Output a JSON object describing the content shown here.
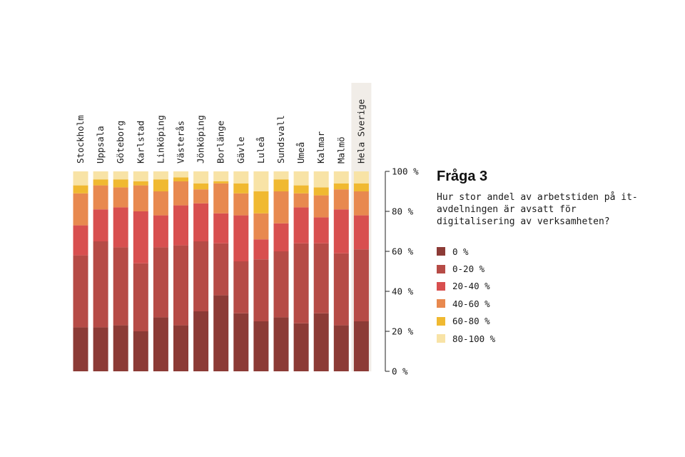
{
  "chart_data": {
    "type": "bar",
    "stacked": true,
    "title": "Fråga 3",
    "subtitle": "Hur stor andel av arbetstiden på it-avdelningen är avsatt för digitalisering av verksamheten?",
    "categories": [
      "Stockholm",
      "Uppsala",
      "Göteborg",
      "Karlstad",
      "Linköping",
      "Västerås",
      "Jönköping",
      "Borlänge",
      "Gävle",
      "Luleå",
      "Sundsvall",
      "Umeå",
      "Kalmar",
      "Malmö",
      "Hela Sverige"
    ],
    "highlight_category": "Hela Sverige",
    "y_ticks": [
      "0 %",
      "20 %",
      "40 %",
      "60 %",
      "80 %",
      "100 %"
    ],
    "ylim": [
      0,
      100
    ],
    "series": [
      {
        "name": "0 %",
        "color": "#8c3b36",
        "values": [
          22,
          22,
          23,
          20,
          27,
          23,
          30,
          38,
          29,
          25,
          27,
          24,
          29,
          23,
          25
        ]
      },
      {
        "name": "0-20 %",
        "color": "#b64b46",
        "values": [
          36,
          43,
          39,
          34,
          35,
          40,
          35,
          26,
          26,
          31,
          33,
          40,
          35,
          36,
          36
        ]
      },
      {
        "name": "20-40 %",
        "color": "#d84f4f",
        "values": [
          15,
          16,
          20,
          26,
          16,
          20,
          19,
          15,
          23,
          10,
          14,
          18,
          13,
          22,
          17
        ]
      },
      {
        "name": "40-60 %",
        "color": "#e8894f",
        "values": [
          16,
          12,
          10,
          13,
          12,
          12,
          7,
          15,
          11,
          13,
          16,
          7,
          11,
          10,
          12
        ]
      },
      {
        "name": "60-80 %",
        "color": "#f0b931",
        "values": [
          4,
          3,
          4,
          2,
          6,
          2,
          3,
          1,
          5,
          11,
          6,
          4,
          4,
          3,
          4
        ]
      },
      {
        "name": "80-100 %",
        "color": "#f8e3a6",
        "values": [
          7,
          4,
          4,
          5,
          4,
          3,
          6,
          5,
          6,
          10,
          4,
          7,
          8,
          6,
          6
        ]
      }
    ]
  }
}
